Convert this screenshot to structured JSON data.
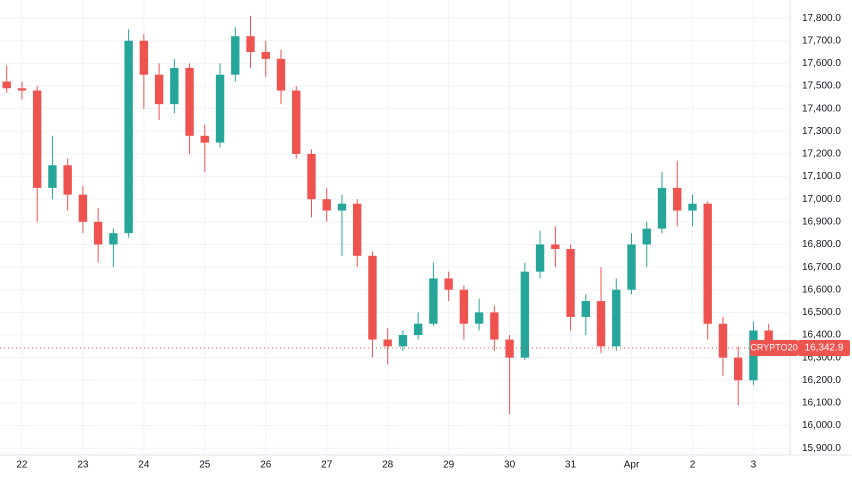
{
  "chart_data": {
    "type": "candlestick",
    "x": [
      -0.25,
      0,
      0.25,
      0.5,
      0.75,
      1,
      1.25,
      1.5,
      1.75,
      2,
      2.25,
      2.5,
      2.75,
      3,
      3.25,
      3.5,
      3.75,
      4,
      4.25,
      4.5,
      4.75,
      5,
      5.25,
      5.5,
      5.75,
      6,
      6.25,
      6.5,
      6.75,
      7,
      7.25,
      7.5,
      7.75,
      8,
      8.25,
      8.5,
      8.75,
      9,
      9.25,
      9.5,
      9.75,
      10,
      10.25,
      10.5,
      10.75,
      11,
      11.25,
      11.5,
      11.75,
      12,
      12.25
    ],
    "open": [
      17520,
      17490,
      17480,
      17050,
      17150,
      17020,
      16900,
      16800,
      16850,
      17700,
      17550,
      17420,
      17580,
      17280,
      17250,
      17550,
      17720,
      17650,
      17620,
      17480,
      17200,
      17000,
      16950,
      16980,
      16750,
      16380,
      16350,
      16400,
      16450,
      16650,
      16600,
      16450,
      16500,
      16380,
      16300,
      16680,
      16800,
      16780,
      16480,
      16550,
      16350,
      16600,
      16800,
      16870,
      17050,
      16950,
      16980,
      16450,
      16300,
      16200,
      16420
    ],
    "high": [
      17590,
      17520,
      17500,
      17280,
      17180,
      17060,
      16960,
      16870,
      17750,
      17730,
      17600,
      17620,
      17600,
      17330,
      17600,
      17760,
      17810,
      17700,
      17660,
      17500,
      17220,
      17050,
      17020,
      17000,
      16770,
      16430,
      16420,
      16500,
      16720,
      16680,
      16620,
      16560,
      16530,
      16400,
      16720,
      16860,
      16880,
      16800,
      16580,
      16700,
      16650,
      16850,
      16900,
      17120,
      17170,
      17020,
      16990,
      16480,
      16350,
      16460,
      16450
    ],
    "low": [
      17470,
      17440,
      16900,
      17000,
      16950,
      16850,
      16720,
      16700,
      16830,
      17400,
      17350,
      17380,
      17200,
      17120,
      17230,
      17520,
      17580,
      17540,
      17420,
      17180,
      16920,
      16900,
      16750,
      16700,
      16300,
      16270,
      16330,
      16380,
      16440,
      16550,
      16380,
      16420,
      16330,
      16050,
      16290,
      16650,
      16700,
      16420,
      16400,
      16320,
      16330,
      16580,
      16700,
      16850,
      16880,
      16880,
      16380,
      16220,
      16090,
      16180,
      16330
    ],
    "close": [
      17490,
      17480,
      17050,
      17150,
      17020,
      16900,
      16800,
      16850,
      17700,
      17550,
      17420,
      17580,
      17280,
      17250,
      17550,
      17720,
      17650,
      17620,
      17480,
      17200,
      17000,
      16950,
      16980,
      16750,
      16380,
      16350,
      16400,
      16450,
      16650,
      16600,
      16450,
      16500,
      16380,
      16300,
      16680,
      16800,
      16780,
      16480,
      16550,
      16350,
      16600,
      16800,
      16870,
      17050,
      16950,
      16980,
      16450,
      16300,
      16200,
      16420,
      16342.9
    ],
    "up_color": "#26a69a",
    "down_color": "#ef5350",
    "xlim": [
      -0.36,
      12.6
    ],
    "ylim": [
      15870,
      17880
    ],
    "xticks": [
      {
        "value": 0,
        "label": "22"
      },
      {
        "value": 1,
        "label": "23"
      },
      {
        "value": 2,
        "label": "24"
      },
      {
        "value": 3,
        "label": "25"
      },
      {
        "value": 4,
        "label": "26"
      },
      {
        "value": 5,
        "label": "27"
      },
      {
        "value": 6,
        "label": "28"
      },
      {
        "value": 7,
        "label": "29"
      },
      {
        "value": 8,
        "label": "30"
      },
      {
        "value": 9,
        "label": "31"
      },
      {
        "value": 10,
        "label": "Apr"
      },
      {
        "value": 11,
        "label": "2"
      },
      {
        "value": 12,
        "label": "3"
      }
    ],
    "yticks": [
      {
        "value": 15900,
        "label": "15,900.0"
      },
      {
        "value": 16000,
        "label": "16,000.0"
      },
      {
        "value": 16100,
        "label": "16,100.0"
      },
      {
        "value": 16200,
        "label": "16,200.0"
      },
      {
        "value": 16300,
        "label": "16,300.0"
      },
      {
        "value": 16400,
        "label": "16,400.0"
      },
      {
        "value": 16500,
        "label": "16,500.0"
      },
      {
        "value": 16600,
        "label": "16,600.0"
      },
      {
        "value": 16700,
        "label": "16,700.0"
      },
      {
        "value": 16800,
        "label": "16,800.0"
      },
      {
        "value": 16900,
        "label": "16,900.0"
      },
      {
        "value": 17000,
        "label": "17,000.0"
      },
      {
        "value": 17100,
        "label": "17,100.0"
      },
      {
        "value": 17200,
        "label": "17,200.0"
      },
      {
        "value": 17300,
        "label": "17,300.0"
      },
      {
        "value": 17400,
        "label": "17,400.0"
      },
      {
        "value": 17500,
        "label": "17,500.0"
      },
      {
        "value": 17600,
        "label": "17,600.0"
      },
      {
        "value": 17700,
        "label": "17,700.0"
      },
      {
        "value": 17800,
        "label": "17,800.0"
      }
    ],
    "grid": true,
    "symbol": "CRYPTO20",
    "last_price": {
      "value": 16342.9,
      "label": "16,342.9"
    }
  }
}
